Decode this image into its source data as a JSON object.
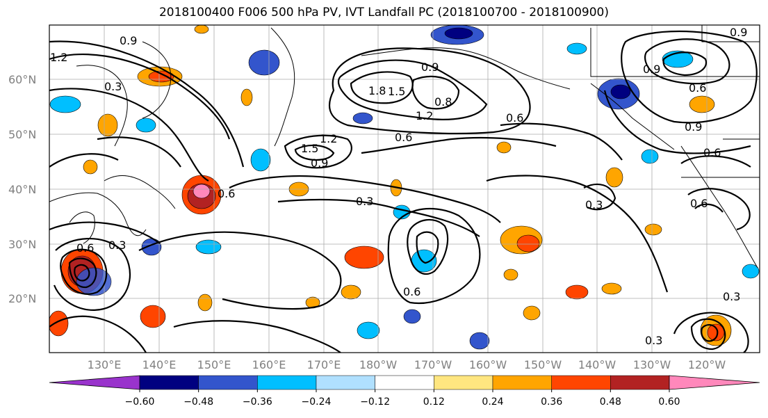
{
  "title": "2018100400 F006 500 hPa PV, IVT Landfall PC (2018100700 - 2018100900)",
  "lat_labels": [
    "60°N",
    "50°N",
    "40°N",
    "30°N",
    "20°N"
  ],
  "lon_labels": [
    "130°E",
    "140°E",
    "150°E",
    "160°E",
    "170°E",
    "180°W",
    "170°W",
    "160°W",
    "150°W",
    "140°W",
    "130°W",
    "120°W"
  ],
  "colorbar": {
    "colors": [
      "#9933cc",
      "#000080",
      "#3355cc",
      "#00bfff",
      "#b0e0ff",
      "#ffffff",
      "#ffe680",
      "#ffa500",
      "#ff4500",
      "#b22222",
      "#ff88bb"
    ],
    "tick_labels": [
      "−0.60",
      "−0.48",
      "−0.36",
      "−0.24",
      "−0.12",
      "0.12",
      "0.24",
      "0.36",
      "0.48",
      "0.60"
    ]
  },
  "contour_labels": [
    "0.9",
    "1.2",
    "0.3",
    "0.9",
    "1.8",
    "1.5",
    "0.8",
    "1.2",
    "0.9",
    "0.6",
    "0.9",
    "0.6",
    "1.5",
    "1.2",
    "0.9",
    "0.6",
    "0.3",
    "0.6",
    "0.3",
    "0.6",
    "0.3",
    "0.6",
    "0.6",
    "0.3",
    "0.3",
    "0.9",
    "0.6"
  ]
}
